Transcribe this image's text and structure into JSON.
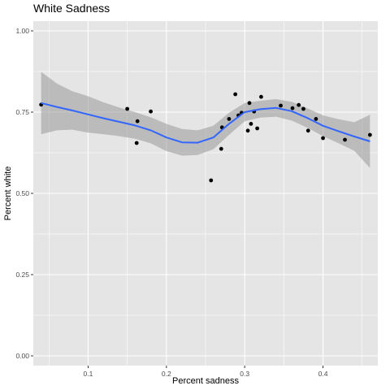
{
  "chart_data": {
    "type": "scatter",
    "title": "White Sadness",
    "xlabel": "Percent sadness",
    "ylabel": "Percent white",
    "xlim": [
      0.03,
      0.47
    ],
    "ylim": [
      -0.03,
      1.03
    ],
    "x_ticks": [
      0.1,
      0.2,
      0.3,
      0.4
    ],
    "x_tick_labels": [
      "0.1",
      "0.2",
      "0.3",
      "0.4"
    ],
    "y_ticks": [
      0.0,
      0.25,
      0.5,
      0.75,
      1.0
    ],
    "y_tick_labels": [
      "0.00",
      "0.25",
      "0.50",
      "0.75",
      "1.00"
    ],
    "grid": true,
    "colors": {
      "panel": "#e5e5e5",
      "grid": "#ffffff",
      "points": "#000000",
      "smooth_line": "#3366ff",
      "ribbon": "#999999"
    },
    "points": [
      {
        "x": 0.04,
        "y": 0.773
      },
      {
        "x": 0.15,
        "y": 0.76
      },
      {
        "x": 0.162,
        "y": 0.655
      },
      {
        "x": 0.163,
        "y": 0.722
      },
      {
        "x": 0.18,
        "y": 0.752
      },
      {
        "x": 0.257,
        "y": 0.54
      },
      {
        "x": 0.27,
        "y": 0.637
      },
      {
        "x": 0.271,
        "y": 0.703
      },
      {
        "x": 0.28,
        "y": 0.729
      },
      {
        "x": 0.288,
        "y": 0.805
      },
      {
        "x": 0.292,
        "y": 0.74
      },
      {
        "x": 0.296,
        "y": 0.748
      },
      {
        "x": 0.304,
        "y": 0.693
      },
      {
        "x": 0.306,
        "y": 0.778
      },
      {
        "x": 0.308,
        "y": 0.714
      },
      {
        "x": 0.312,
        "y": 0.752
      },
      {
        "x": 0.316,
        "y": 0.7
      },
      {
        "x": 0.321,
        "y": 0.797
      },
      {
        "x": 0.346,
        "y": 0.77
      },
      {
        "x": 0.361,
        "y": 0.762
      },
      {
        "x": 0.369,
        "y": 0.772
      },
      {
        "x": 0.375,
        "y": 0.76
      },
      {
        "x": 0.381,
        "y": 0.693
      },
      {
        "x": 0.391,
        "y": 0.729
      },
      {
        "x": 0.4,
        "y": 0.67
      },
      {
        "x": 0.428,
        "y": 0.665
      },
      {
        "x": 0.46,
        "y": 0.68
      }
    ],
    "smooth": {
      "x": [
        0.04,
        0.06,
        0.08,
        0.1,
        0.12,
        0.14,
        0.16,
        0.18,
        0.2,
        0.22,
        0.24,
        0.26,
        0.28,
        0.3,
        0.32,
        0.34,
        0.36,
        0.38,
        0.4,
        0.42,
        0.44,
        0.46
      ],
      "y": [
        0.778,
        0.766,
        0.755,
        0.743,
        0.731,
        0.72,
        0.709,
        0.694,
        0.672,
        0.657,
        0.656,
        0.672,
        0.714,
        0.75,
        0.759,
        0.763,
        0.753,
        0.732,
        0.708,
        0.691,
        0.675,
        0.66
      ],
      "upper": [
        0.874,
        0.838,
        0.814,
        0.799,
        0.78,
        0.764,
        0.75,
        0.734,
        0.714,
        0.698,
        0.694,
        0.708,
        0.748,
        0.778,
        0.785,
        0.79,
        0.782,
        0.762,
        0.74,
        0.728,
        0.719,
        0.742
      ],
      "lower": [
        0.682,
        0.694,
        0.696,
        0.687,
        0.682,
        0.676,
        0.668,
        0.654,
        0.63,
        0.616,
        0.618,
        0.636,
        0.68,
        0.722,
        0.733,
        0.736,
        0.724,
        0.702,
        0.676,
        0.654,
        0.631,
        0.578
      ]
    }
  }
}
